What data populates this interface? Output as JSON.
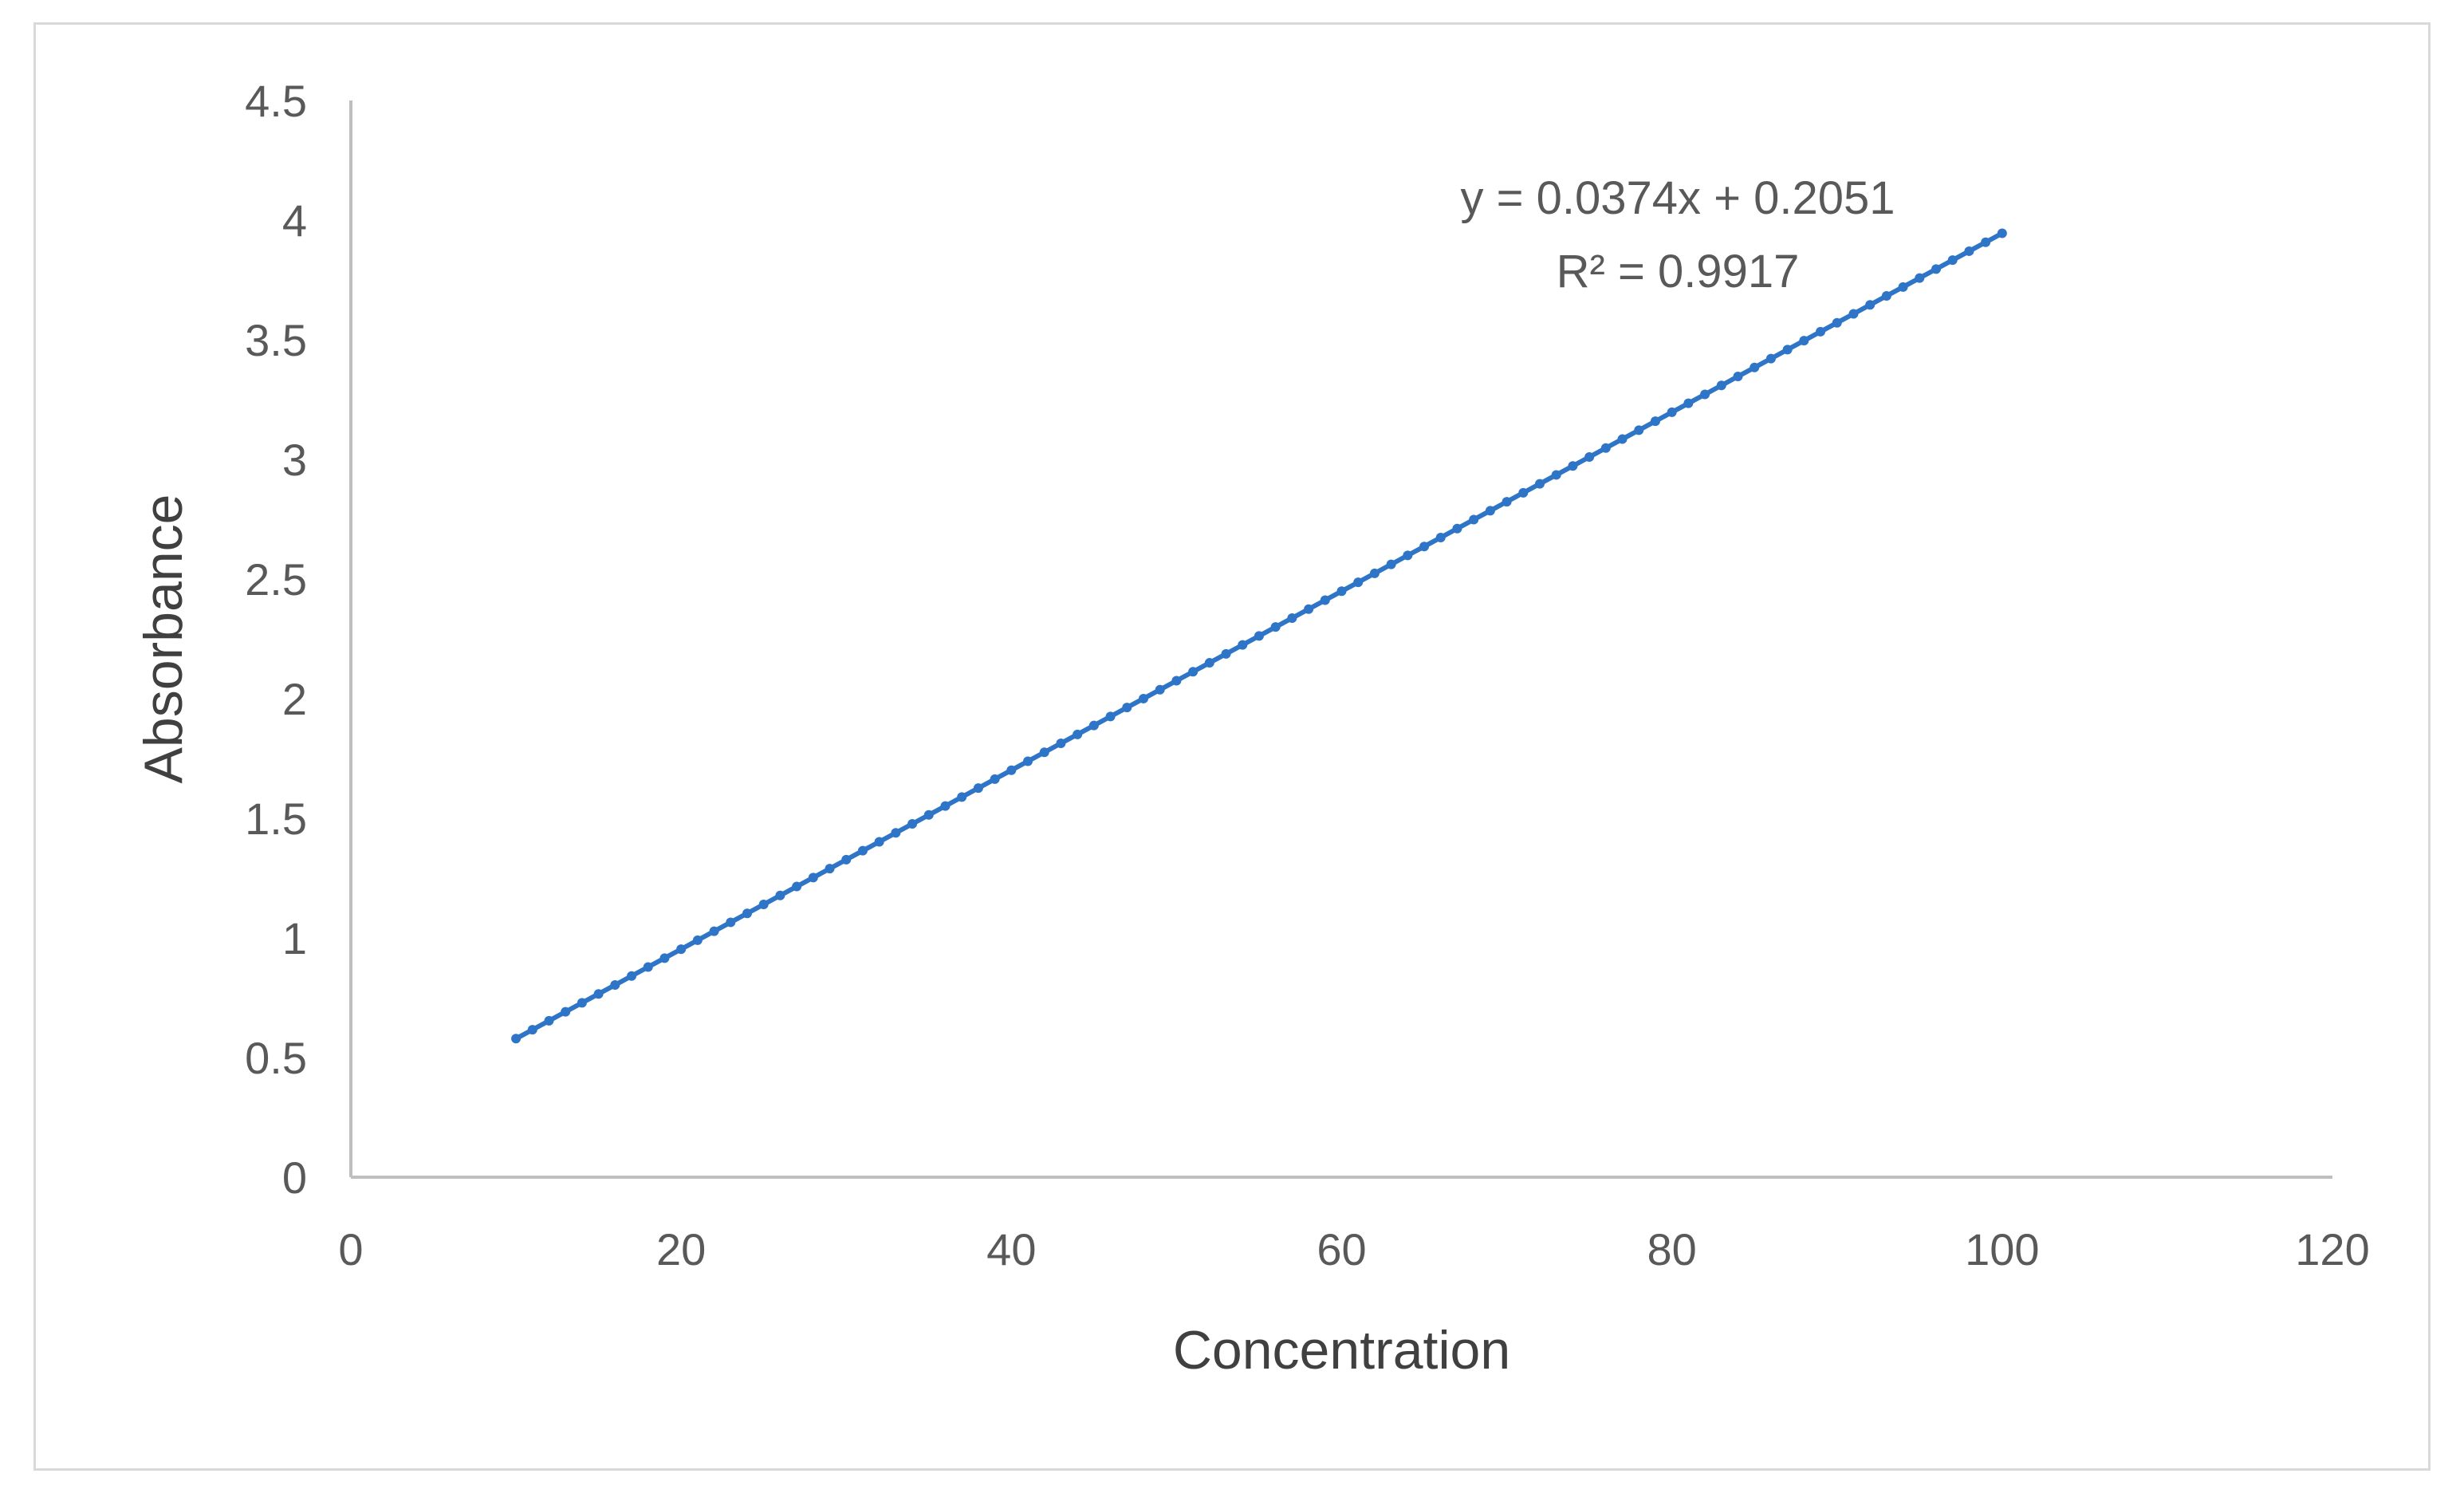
{
  "chart_data": {
    "type": "line",
    "title": "",
    "xlabel": "Concentration",
    "ylabel": "Absorbance",
    "xlim": [
      0,
      120
    ],
    "ylim": [
      0,
      4.5
    ],
    "x_ticks": [
      "0",
      "20",
      "40",
      "60",
      "80",
      "100",
      "120"
    ],
    "y_ticks": [
      "0",
      "0.5",
      "1",
      "1.5",
      "2",
      "2.5",
      "3",
      "3.5",
      "4",
      "4.5"
    ],
    "grid": false,
    "legend": "none",
    "series": [
      {
        "color": "#2e75c8",
        "marker": "dot",
        "x_start": 10,
        "x_end": 100,
        "x_step": 1,
        "y_start": 0.579,
        "y_end": 3.945
      }
    ],
    "annotations": {
      "equation": "y = 0.0374x + 0.2051",
      "r_squared": "R² = 0.9917"
    },
    "colors": {
      "line": "#2e75c8",
      "axis": "#bfbfbf",
      "text": "#595959"
    }
  }
}
